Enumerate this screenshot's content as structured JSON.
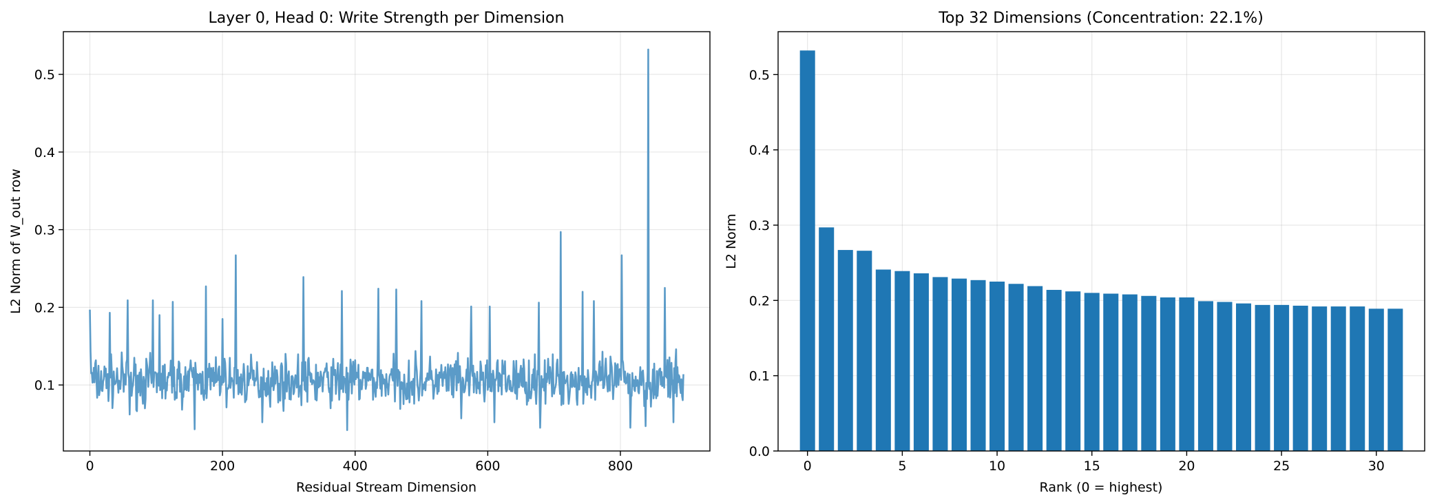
{
  "chart_data": [
    {
      "type": "line",
      "title": "Layer 0, Head 0: Write Strength per Dimension",
      "xlabel": "Residual Stream Dimension",
      "ylabel": "L2 Norm of W_out row",
      "xlim": [
        -40,
        935
      ],
      "ylim": [
        0.015,
        0.555
      ],
      "xticks": [
        0,
        200,
        400,
        600,
        800
      ],
      "yticks": [
        0.1,
        0.2,
        0.3,
        0.4,
        0.5
      ],
      "ytick_decimals": 1,
      "grid": true,
      "line_color": "#5b9bc8",
      "series": [
        {
          "name": "L2 Norm",
          "x_start": 0,
          "n_points": 896,
          "baseline_mean": 0.105,
          "noise_amplitude": 0.028,
          "seed": 7,
          "spikes": [
            {
              "x": 0,
              "y": 0.197
            },
            {
              "x": 1,
              "y": 0.143
            },
            {
              "x": 30,
              "y": 0.193
            },
            {
              "x": 57,
              "y": 0.209
            },
            {
              "x": 60,
              "y": 0.062
            },
            {
              "x": 95,
              "y": 0.209
            },
            {
              "x": 105,
              "y": 0.19
            },
            {
              "x": 125,
              "y": 0.207
            },
            {
              "x": 158,
              "y": 0.043
            },
            {
              "x": 175,
              "y": 0.227
            },
            {
              "x": 200,
              "y": 0.185
            },
            {
              "x": 220,
              "y": 0.267
            },
            {
              "x": 260,
              "y": 0.052
            },
            {
              "x": 322,
              "y": 0.239
            },
            {
              "x": 380,
              "y": 0.221
            },
            {
              "x": 388,
              "y": 0.042
            },
            {
              "x": 435,
              "y": 0.224
            },
            {
              "x": 462,
              "y": 0.223
            },
            {
              "x": 500,
              "y": 0.208
            },
            {
              "x": 560,
              "y": 0.057
            },
            {
              "x": 575,
              "y": 0.201
            },
            {
              "x": 603,
              "y": 0.201
            },
            {
              "x": 610,
              "y": 0.052
            },
            {
              "x": 677,
              "y": 0.206
            },
            {
              "x": 679,
              "y": 0.045
            },
            {
              "x": 710,
              "y": 0.297
            },
            {
              "x": 743,
              "y": 0.22
            },
            {
              "x": 760,
              "y": 0.208
            },
            {
              "x": 802,
              "y": 0.267
            },
            {
              "x": 815,
              "y": 0.045
            },
            {
              "x": 838,
              "y": 0.047
            },
            {
              "x": 842,
              "y": 0.532
            },
            {
              "x": 867,
              "y": 0.225
            },
            {
              "x": 880,
              "y": 0.052
            }
          ]
        }
      ]
    },
    {
      "type": "bar",
      "title": "Top 32 Dimensions (Concentration: 22.1%)",
      "xlabel": "Rank (0 = highest)",
      "ylabel": "L2 Norm",
      "xlim": [
        -1.55,
        32.55
      ],
      "ylim": [
        0,
        0.557
      ],
      "xticks": [
        0,
        5,
        10,
        15,
        20,
        25,
        30
      ],
      "yticks": [
        0.0,
        0.1,
        0.2,
        0.3,
        0.4,
        0.5
      ],
      "ytick_decimals": 1,
      "grid": true,
      "bar_color": "#1f77b4",
      "bar_width": 0.8,
      "categories": [
        0,
        1,
        2,
        3,
        4,
        5,
        6,
        7,
        8,
        9,
        10,
        11,
        12,
        13,
        14,
        15,
        16,
        17,
        18,
        19,
        20,
        21,
        22,
        23,
        24,
        25,
        26,
        27,
        28,
        29,
        30,
        31
      ],
      "values": [
        0.532,
        0.297,
        0.267,
        0.266,
        0.241,
        0.239,
        0.236,
        0.231,
        0.229,
        0.227,
        0.225,
        0.222,
        0.219,
        0.214,
        0.212,
        0.21,
        0.209,
        0.208,
        0.206,
        0.204,
        0.204,
        0.199,
        0.198,
        0.196,
        0.194,
        0.194,
        0.193,
        0.192,
        0.192,
        0.192,
        0.189,
        0.189
      ]
    }
  ]
}
